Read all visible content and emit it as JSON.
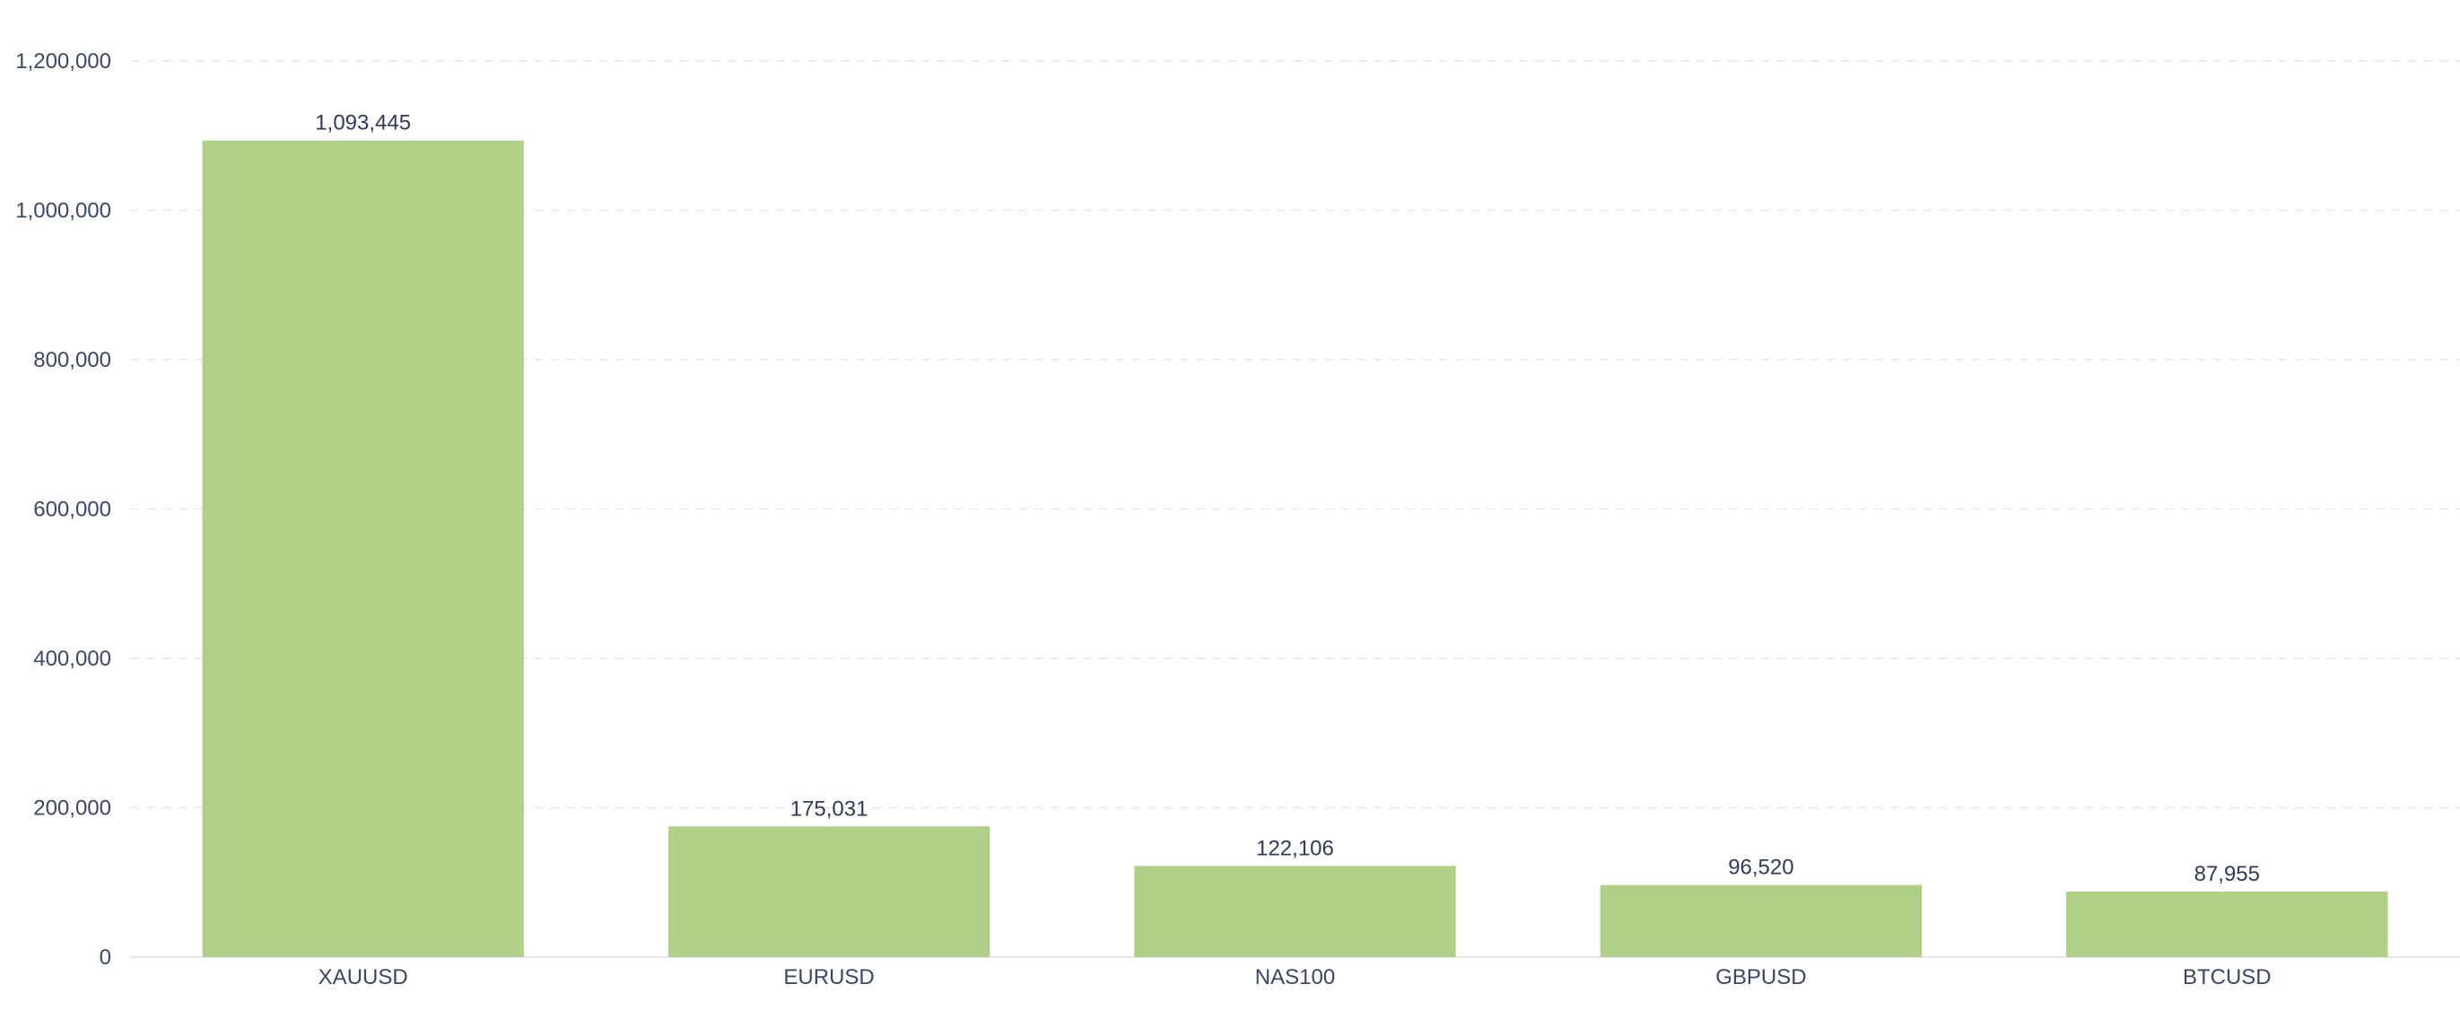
{
  "chart_data": {
    "type": "bar",
    "categories": [
      "XAUUSD",
      "EURUSD",
      "NAS100",
      "GBPUSD",
      "BTCUSD"
    ],
    "values": [
      1093445,
      175031,
      122106,
      96520,
      87955
    ],
    "value_labels": [
      "1,093,445",
      "175,031",
      "122,106",
      "96,520",
      "87,955"
    ],
    "y_ticks": [
      0,
      200000,
      400000,
      600000,
      800000,
      1000000,
      1200000
    ],
    "y_tick_labels": [
      "0",
      "200,000",
      "400,000",
      "600,000",
      "800,000",
      "1,000,000",
      "1,200,000"
    ],
    "ylim": [
      0,
      1200000
    ],
    "title": "",
    "xlabel": "",
    "ylabel": "",
    "grid": true,
    "legend": "none",
    "colors": {
      "bar": "#b0cf87",
      "text": "#3b4668",
      "grid": "#e4e7ee"
    }
  }
}
